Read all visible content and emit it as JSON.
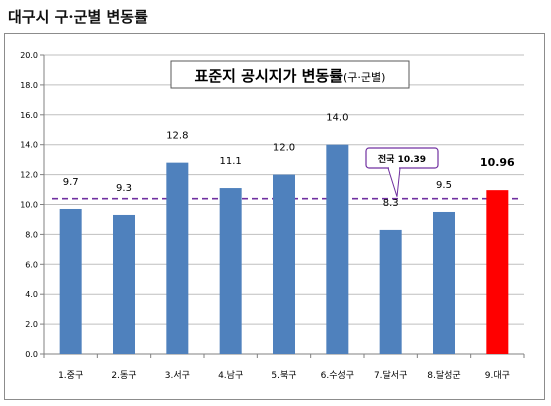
{
  "page": {
    "heading": "대구시 구·군별 변동률"
  },
  "chart_data": {
    "type": "bar",
    "title": "표준지 공시지가 변동률",
    "title_suffix": "(구·군별)",
    "categories": [
      "1.중구",
      "2.동구",
      "3.서구",
      "4.남구",
      "5.북구",
      "6.수성구",
      "7.달서구",
      "8.달성군",
      "9.대구"
    ],
    "values": [
      9.7,
      9.3,
      12.8,
      11.1,
      12.0,
      14.0,
      8.3,
      9.5,
      10.96
    ],
    "value_labels": [
      "9.7",
      "9.3",
      "12.8",
      "11.1",
      "12.0",
      "14.0",
      "8.3",
      "9.5",
      "10.96"
    ],
    "bar_colors": [
      "#4f81bd",
      "#4f81bd",
      "#4f81bd",
      "#4f81bd",
      "#4f81bd",
      "#4f81bd",
      "#4f81bd",
      "#4f81bd",
      "#ff0000"
    ],
    "highlight_index": 8,
    "ylim": [
      0,
      20
    ],
    "yticks": [
      "0.0",
      "2.0",
      "4.0",
      "6.0",
      "8.0",
      "10.0",
      "12.0",
      "14.0",
      "16.0",
      "18.0",
      "20.0"
    ],
    "grid": true,
    "reference_line": {
      "value": 10.39,
      "label": "전국 10.39",
      "color": "#7030a0"
    }
  }
}
